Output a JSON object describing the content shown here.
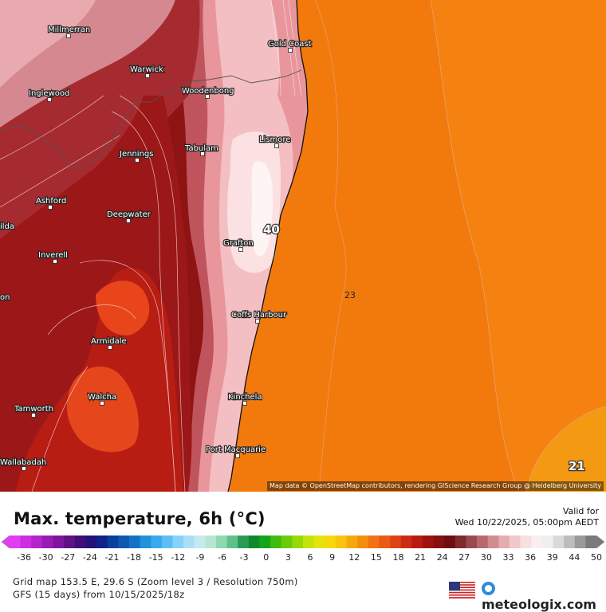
{
  "title": "Max. temperature, 6h (°C)",
  "valid_for_label": "Valid for",
  "valid_date": "Wed 10/22/2025, 05:00pm AEDT",
  "grid_info": "Grid map 153.5 E, 29.6 S (Zoom level 3 / Resolution 750m)",
  "model_info": "GFS (15 days) from 10/15/2025/18z",
  "attribution": "Map data © OpenStreetMap contributors, rendering GIScience Research Group @ Heidelberg University",
  "brand": "meteologix.com",
  "cities": [
    {
      "name": "Millmerran",
      "label": "Millmerran"
    },
    {
      "name": "Gold Coast",
      "label": "Gold Coast"
    },
    {
      "name": "Warwick",
      "label": "Warwick"
    },
    {
      "name": "Inglewood",
      "label": "Inglewood"
    },
    {
      "name": "Woodenbong",
      "label": "Woodenbong"
    },
    {
      "name": "Lismore",
      "label": "Lismore"
    },
    {
      "name": "Tabulam",
      "label": "Tabulam"
    },
    {
      "name": "Jennings",
      "label": "Jennings"
    },
    {
      "name": "Ashford",
      "label": "Ashford"
    },
    {
      "name": "Deepwater",
      "label": "Deepwater"
    },
    {
      "name": "ilda",
      "label": "ilda"
    },
    {
      "name": "Grafton",
      "label": "Grafton"
    },
    {
      "name": "Inverell",
      "label": "Inverell"
    },
    {
      "name": "on",
      "label": "on"
    },
    {
      "name": "Coffs Harbour",
      "label": "Coffs Harbour"
    },
    {
      "name": "Armidale",
      "label": "Armidale"
    },
    {
      "name": "Walcha",
      "label": "Walcha"
    },
    {
      "name": "Kinchela",
      "label": "Kinchela"
    },
    {
      "name": "Tamworth",
      "label": "Tamworth"
    },
    {
      "name": "Port Macquarie",
      "label": "Port Macquarie"
    },
    {
      "name": "Wallabadah",
      "label": "Wallabadah"
    }
  ],
  "value_labels": {
    "max": "40",
    "ocean": "23",
    "corner": "21"
  },
  "scale_ticks": [
    "-36",
    "-30",
    "-27",
    "-24",
    "-21",
    "-18",
    "-15",
    "-12",
    "-9",
    "-6",
    "-3",
    "0",
    "3",
    "6",
    "9",
    "12",
    "15",
    "18",
    "21",
    "24",
    "27",
    "30",
    "33",
    "36",
    "39",
    "44",
    "50"
  ],
  "scale_colors": [
    "#e23df0",
    "#cc2ee0",
    "#b423cc",
    "#9a1ab4",
    "#7e159c",
    "#5f1186",
    "#3f0e78",
    "#22127a",
    "#0f2389",
    "#08409c",
    "#0d58b0",
    "#1472c6",
    "#2390da",
    "#3aa8ec",
    "#5cbef5",
    "#86d2fa",
    "#a9e0f8",
    "#c4eaf0",
    "#b8e6d2",
    "#8fd8b2",
    "#5ec18c",
    "#2a9a55",
    "#0e8a2c",
    "#13a51c",
    "#3ebd10",
    "#6ccc09",
    "#98d908",
    "#c3e40a",
    "#e5e30c",
    "#f5d80f",
    "#f8c40d",
    "#f6a90c",
    "#f48e0f",
    "#ef7312",
    "#e95b15",
    "#df4216",
    "#cc2b13",
    "#b71b12",
    "#9f1210",
    "#85100f",
    "#6d0e10",
    "#7e2a2e",
    "#9a4a4c",
    "#b76a6c",
    "#cf8d8f",
    "#e3acae",
    "#f0c8ca",
    "#f8dfe0",
    "#fbeef0",
    "#efefef",
    "#d9d9d9",
    "#bdbdbd",
    "#9a9a9a",
    "#7a7a7a"
  ],
  "legend_colors": {
    "ocean": "#f57d0d",
    "ocean_light": "#f59a10"
  }
}
